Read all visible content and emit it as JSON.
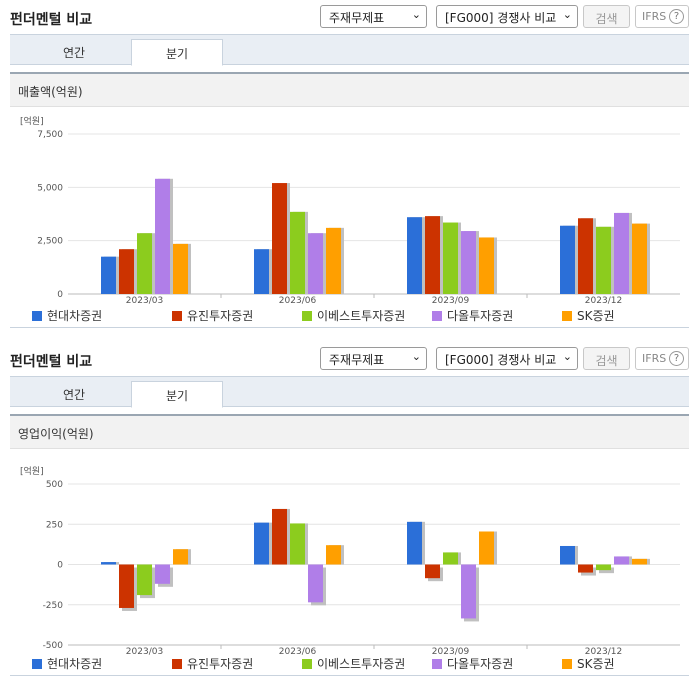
{
  "colors": {
    "series": [
      "#2b6fd8",
      "#cc3300",
      "#8ccc1e",
      "#b07ee8",
      "#ff9f00"
    ],
    "shadow": "#c0c0c0",
    "grid": "#e4e4e4",
    "tick_text": "#555555"
  },
  "panels": [
    {
      "header": {
        "title": "펀더멘털 비교",
        "select1": "주재무제표",
        "select2": "[FG000] 경쟁사 비교",
        "search_label": "검색",
        "ifrs_label": "IFRS",
        "help_icon": "?"
      },
      "tabs": [
        {
          "label": "연간",
          "active": false
        },
        {
          "label": "분기",
          "active": true
        }
      ],
      "chart_title": "매출액(억원)",
      "chart_data": {
        "type": "bar",
        "unit_label": "[억원]",
        "categories": [
          "2023/03",
          "2023/06",
          "2023/09",
          "2023/12"
        ],
        "ylim": [
          0,
          7500
        ],
        "yticks": [
          0,
          2500,
          5000,
          7500
        ],
        "ytick_labels": [
          "0",
          "2,500",
          "5,000",
          "7,500"
        ],
        "grid": true,
        "legend_position": "bottom",
        "series": [
          {
            "name": "현대차증권",
            "values": [
              1750,
              2100,
              3600,
              3200
            ]
          },
          {
            "name": "유진투자증권",
            "values": [
              2100,
              5200,
              3650,
              3550
            ]
          },
          {
            "name": "이베스트투자증권",
            "values": [
              2850,
              3850,
              3350,
              3150
            ]
          },
          {
            "name": "다올투자증권",
            "values": [
              5400,
              2850,
              2950,
              3800
            ]
          },
          {
            "name": "SK증권",
            "values": [
              2350,
              3100,
              2650,
              3300
            ]
          }
        ]
      }
    },
    {
      "header": {
        "title": "펀더멘털 비교",
        "select1": "주재무제표",
        "select2": "[FG000] 경쟁사 비교",
        "search_label": "검색",
        "ifrs_label": "IFRS",
        "help_icon": "?"
      },
      "tabs": [
        {
          "label": "연간",
          "active": false
        },
        {
          "label": "분기",
          "active": true
        }
      ],
      "chart_title": "영업이익(억원)",
      "chart_data": {
        "type": "bar",
        "unit_label": "[억원]",
        "categories": [
          "2023/03",
          "2023/06",
          "2023/09",
          "2023/12"
        ],
        "ylim": [
          -500,
          500
        ],
        "yticks": [
          -500,
          -250,
          0,
          250,
          500
        ],
        "ytick_labels": [
          "-500",
          "-250",
          "0",
          "250",
          "500"
        ],
        "grid": true,
        "legend_position": "bottom",
        "series": [
          {
            "name": "현대차증권",
            "values": [
              15,
              260,
              265,
              115
            ]
          },
          {
            "name": "유진투자증권",
            "values": [
              -270,
              345,
              -85,
              -50
            ]
          },
          {
            "name": "이베스트투자증권",
            "values": [
              -190,
              255,
              75,
              -35
            ]
          },
          {
            "name": "다올투자증권",
            "values": [
              -120,
              -235,
              -335,
              50
            ]
          },
          {
            "name": "SK증권",
            "values": [
              95,
              120,
              205,
              35
            ]
          }
        ]
      }
    }
  ]
}
